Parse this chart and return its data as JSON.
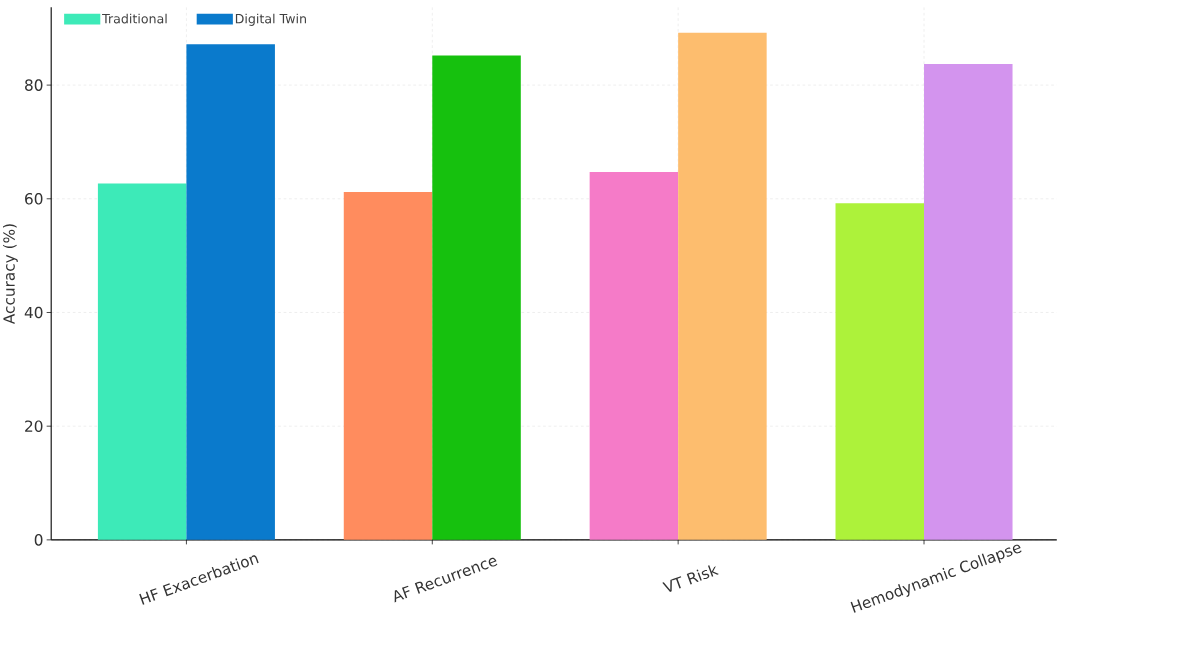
{
  "chart_data": {
    "type": "bar",
    "ylabel": "Accuracy (%)",
    "categories": [
      "HF Exacerbation",
      "AF Recurrence",
      "VT Risk",
      "Hemodynamic Collapse"
    ],
    "series": [
      {
        "name": "Traditional",
        "color": "#3deab8",
        "colors": [
          "#3deab8",
          "#ff8c5e",
          "#f57bc8",
          "#adf23a"
        ],
        "values": [
          62.7,
          61.2,
          64.7,
          59.2
        ]
      },
      {
        "name": "Digital Twin",
        "color": "#0a7acc",
        "colors": [
          "#0a7acc",
          "#16c10e",
          "#fdbd6e",
          "#d394ee"
        ],
        "values": [
          87.2,
          85.2,
          89.2,
          83.7
        ]
      }
    ],
    "ylim": [
      0,
      93.7
    ],
    "yticks": [
      0,
      20,
      40,
      60,
      80
    ],
    "grid": true,
    "legend": "top left"
  }
}
